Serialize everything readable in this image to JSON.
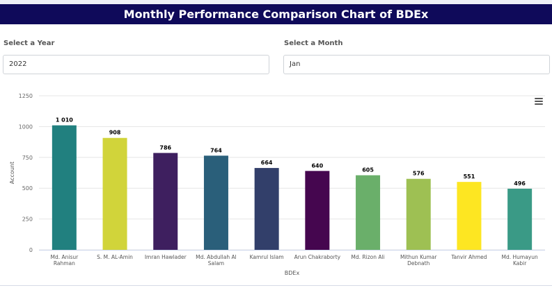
{
  "header": {
    "title": "Monthly Performance Comparison Chart of BDEx"
  },
  "filters": {
    "year_label": "Select a Year",
    "year_value": "2022",
    "month_label": "Select a Month",
    "month_value": "Jan"
  },
  "menu": {
    "icon": "hamburger-menu-icon"
  },
  "chart_data": {
    "type": "bar",
    "title": "",
    "xlabel": "BDEx",
    "ylabel": "Account",
    "ylim": [
      0,
      1250
    ],
    "yticks": [
      0,
      250,
      500,
      750,
      1000,
      1250
    ],
    "grid": true,
    "legend": "none",
    "categories": [
      [
        "Md. Anisur",
        "Rahman"
      ],
      [
        "S. M. AL-Amin"
      ],
      [
        "Imran Hawlader"
      ],
      [
        "Md. Abdullah Al",
        "Salam"
      ],
      [
        "Kamrul Islam"
      ],
      [
        "Arun Chakraborty"
      ],
      [
        "Md. Rizon Ali"
      ],
      [
        "Mithun Kumar",
        "Debnath"
      ],
      [
        "Tanvir Ahmed"
      ],
      [
        "Md. Humayun",
        "Kabir"
      ]
    ],
    "values": [
      1010,
      908,
      786,
      764,
      664,
      640,
      605,
      576,
      551,
      496
    ],
    "value_labels": [
      "1 010",
      "908",
      "786",
      "764",
      "664",
      "640",
      "605",
      "576",
      "551",
      "496"
    ],
    "colors": [
      "#21807f",
      "#d1d43a",
      "#3e1f5f",
      "#2a5f7a",
      "#323f6a",
      "#45064f",
      "#6aaf6a",
      "#9ec053",
      "#fde622",
      "#3a9a86"
    ]
  }
}
